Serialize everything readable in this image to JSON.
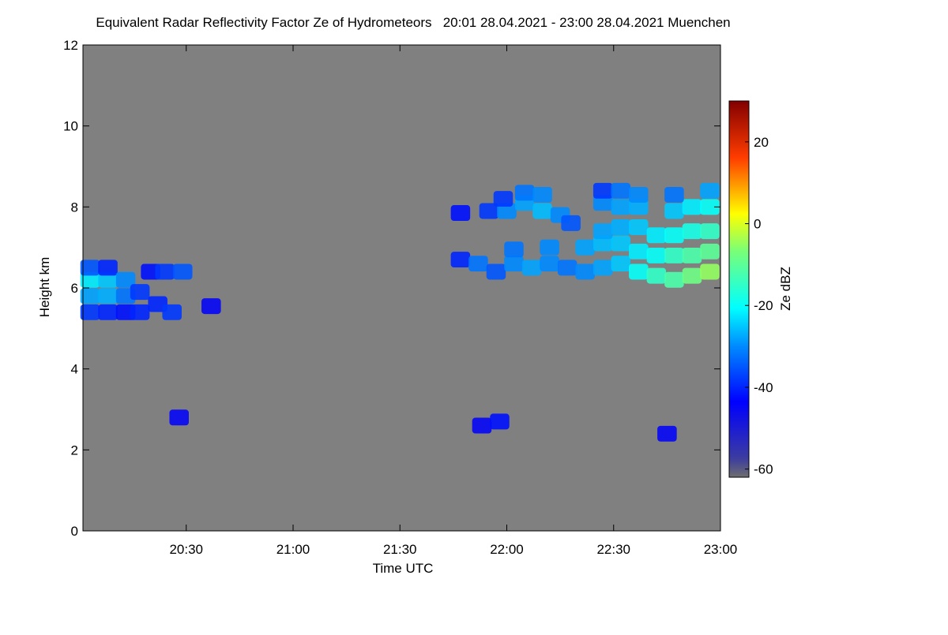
{
  "chart_data": {
    "type": "heatmap",
    "title": "Equivalent Radar Reflectivity Factor Ze of Hydrometeors   20:01 28.04.2021 - 23:00 28.04.2021 Muenchen",
    "x_label": "Time UTC",
    "y_label": "Height km",
    "colorbar_label": "Ze dBZ",
    "xlim": [
      "20:01",
      "23:00"
    ],
    "xticks": [
      "20:30",
      "21:00",
      "21:30",
      "22:00",
      "22:30",
      "23:00"
    ],
    "ylim": [
      0,
      12
    ],
    "yticks": [
      0,
      2,
      4,
      6,
      8,
      10,
      12
    ],
    "clim": [
      -62,
      30
    ],
    "cticks": [
      -60,
      -40,
      -20,
      0,
      20
    ],
    "background": "#808080",
    "cells": [
      [
        "20:03",
        5.4,
        -38
      ],
      [
        "20:03",
        5.8,
        -28
      ],
      [
        "20:03",
        6.2,
        -22
      ],
      [
        "20:03",
        6.5,
        -35
      ],
      [
        "20:08",
        5.4,
        -40
      ],
      [
        "20:08",
        5.8,
        -27
      ],
      [
        "20:08",
        6.2,
        -25
      ],
      [
        "20:08",
        6.5,
        -40
      ],
      [
        "20:13",
        5.4,
        -42
      ],
      [
        "20:13",
        5.8,
        -32
      ],
      [
        "20:13",
        6.2,
        -30
      ],
      [
        "20:17",
        5.4,
        -40
      ],
      [
        "20:17",
        5.9,
        -38
      ],
      [
        "20:20",
        6.4,
        -42
      ],
      [
        "20:24",
        6.4,
        -38
      ],
      [
        "20:29",
        6.4,
        -35
      ],
      [
        "20:22",
        5.6,
        -40
      ],
      [
        "20:26",
        5.4,
        -38
      ],
      [
        "20:37",
        5.55,
        -45
      ],
      [
        "20:28",
        2.8,
        -45
      ],
      [
        "21:53",
        2.6,
        -45
      ],
      [
        "21:58",
        2.7,
        -42
      ],
      [
        "22:45",
        2.4,
        -45
      ],
      [
        "21:47",
        6.7,
        -40
      ],
      [
        "21:52",
        6.6,
        -32
      ],
      [
        "21:57",
        6.4,
        -35
      ],
      [
        "22:02",
        6.6,
        -30
      ],
      [
        "22:07",
        6.5,
        -28
      ],
      [
        "22:12",
        6.6,
        -30
      ],
      [
        "22:17",
        6.5,
        -32
      ],
      [
        "22:22",
        6.4,
        -30
      ],
      [
        "22:27",
        6.5,
        -28
      ],
      [
        "22:32",
        6.6,
        -25
      ],
      [
        "22:37",
        6.4,
        -20
      ],
      [
        "22:42",
        6.3,
        -15
      ],
      [
        "22:47",
        6.2,
        -12
      ],
      [
        "22:52",
        6.3,
        -8
      ],
      [
        "22:57",
        6.4,
        -5
      ],
      [
        "22:02",
        6.95,
        -32
      ],
      [
        "22:12",
        7.0,
        -30
      ],
      [
        "22:22",
        7.0,
        -28
      ],
      [
        "22:27",
        7.1,
        -26
      ],
      [
        "22:32",
        7.1,
        -25
      ],
      [
        "22:37",
        6.9,
        -22
      ],
      [
        "22:42",
        6.8,
        -20
      ],
      [
        "22:47",
        6.8,
        -15
      ],
      [
        "22:52",
        6.8,
        -12
      ],
      [
        "22:57",
        6.9,
        -10
      ],
      [
        "22:27",
        7.4,
        -28
      ],
      [
        "22:32",
        7.5,
        -27
      ],
      [
        "22:37",
        7.5,
        -25
      ],
      [
        "22:42",
        7.3,
        -22
      ],
      [
        "22:47",
        7.3,
        -20
      ],
      [
        "22:52",
        7.4,
        -18
      ],
      [
        "22:57",
        7.4,
        -15
      ],
      [
        "22:27",
        8.1,
        -30
      ],
      [
        "22:32",
        8.0,
        -28
      ],
      [
        "22:37",
        8.0,
        -27
      ],
      [
        "22:47",
        7.9,
        -25
      ],
      [
        "22:52",
        8.0,
        -22
      ],
      [
        "22:57",
        8.0,
        -20
      ],
      [
        "22:27",
        8.4,
        -38
      ],
      [
        "22:32",
        8.4,
        -32
      ],
      [
        "22:37",
        8.3,
        -30
      ],
      [
        "22:47",
        8.3,
        -32
      ],
      [
        "22:57",
        8.4,
        -28
      ],
      [
        "21:47",
        7.85,
        -42
      ],
      [
        "21:55",
        7.9,
        -38
      ],
      [
        "22:00",
        7.9,
        -30
      ],
      [
        "22:05",
        8.1,
        -28
      ],
      [
        "22:10",
        7.9,
        -26
      ],
      [
        "22:15",
        7.8,
        -30
      ],
      [
        "21:59",
        8.2,
        -38
      ],
      [
        "22:05",
        8.35,
        -32
      ],
      [
        "22:10",
        8.3,
        -30
      ],
      [
        "22:18",
        7.6,
        -35
      ]
    ]
  }
}
